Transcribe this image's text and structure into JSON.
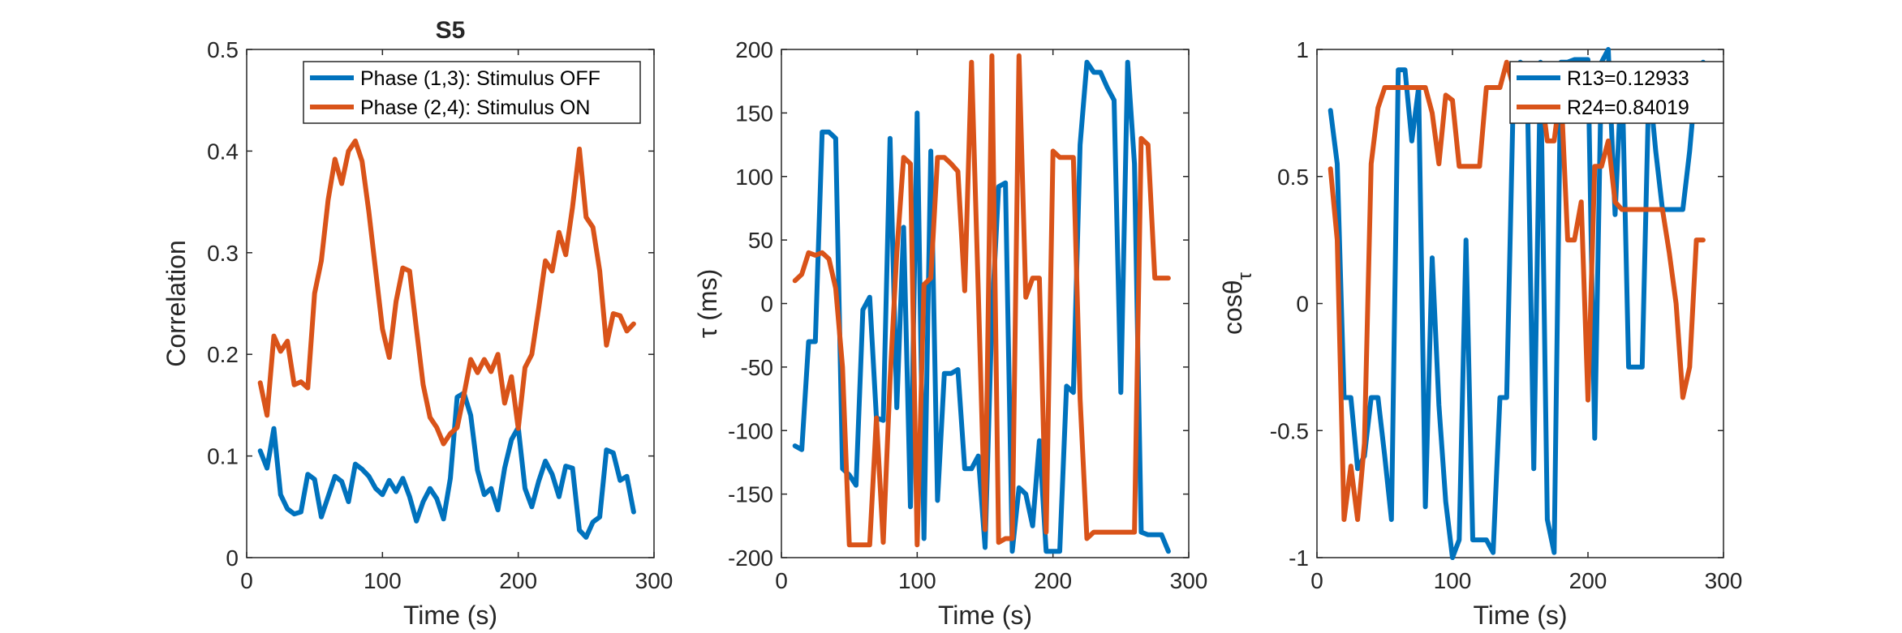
{
  "chart_data": [
    {
      "type": "line",
      "title": "S5",
      "xlabel": "Time (s)",
      "ylabel": "Correlation",
      "xlim": [
        0,
        300
      ],
      "ylim": [
        0,
        0.5
      ],
      "xticks": [
        0,
        100,
        200,
        300
      ],
      "xtick_labels": [
        "0",
        "100",
        "200",
        "300"
      ],
      "yticks": [
        0,
        0.1,
        0.2,
        0.3,
        0.4,
        0.5
      ],
      "ytick_labels": [
        "0",
        "0.1",
        "0.2",
        "0.3",
        "0.4",
        "0.5"
      ],
      "grid": false,
      "legend": "top-right",
      "series": [
        {
          "name": "Phase (1,3): Stimulus OFF",
          "color": "#0072BD",
          "x": [
            10,
            15,
            20,
            25,
            30,
            35,
            40,
            45,
            50,
            55,
            60,
            65,
            70,
            75,
            80,
            85,
            90,
            95,
            100,
            105,
            110,
            115,
            120,
            125,
            130,
            135,
            140,
            145,
            150,
            155,
            160,
            165,
            170,
            175,
            180,
            185,
            190,
            195,
            200,
            205,
            210,
            215,
            220,
            225,
            230,
            235,
            240,
            245,
            250,
            255,
            260,
            265,
            270,
            275,
            280,
            285
          ],
          "y": [
            0.105,
            0.088,
            0.127,
            0.062,
            0.048,
            0.043,
            0.045,
            0.082,
            0.077,
            0.04,
            0.06,
            0.08,
            0.075,
            0.055,
            0.092,
            0.087,
            0.08,
            0.068,
            0.062,
            0.076,
            0.065,
            0.078,
            0.06,
            0.036,
            0.055,
            0.068,
            0.058,
            0.038,
            0.078,
            0.158,
            0.162,
            0.14,
            0.086,
            0.062,
            0.068,
            0.047,
            0.088,
            0.116,
            0.128,
            0.068,
            0.05,
            0.075,
            0.095,
            0.082,
            0.06,
            0.09,
            0.088,
            0.027,
            0.02,
            0.035,
            0.04,
            0.106,
            0.103,
            0.076,
            0.08,
            0.045
          ]
        },
        {
          "name": "Phase (2,4): Stimulus ON",
          "color": "#D95319",
          "x": [
            10,
            15,
            20,
            25,
            30,
            35,
            40,
            45,
            50,
            55,
            60,
            65,
            70,
            75,
            80,
            85,
            90,
            95,
            100,
            105,
            110,
            115,
            120,
            125,
            130,
            135,
            140,
            145,
            150,
            155,
            160,
            165,
            170,
            175,
            180,
            185,
            190,
            195,
            200,
            205,
            210,
            215,
            220,
            225,
            230,
            235,
            240,
            245,
            250,
            255,
            260,
            265,
            270,
            275,
            280,
            285
          ],
          "y": [
            0.172,
            0.14,
            0.218,
            0.203,
            0.213,
            0.17,
            0.173,
            0.167,
            0.26,
            0.292,
            0.352,
            0.392,
            0.368,
            0.4,
            0.41,
            0.39,
            0.34,
            0.282,
            0.225,
            0.197,
            0.252,
            0.285,
            0.282,
            0.225,
            0.17,
            0.138,
            0.128,
            0.112,
            0.122,
            0.128,
            0.16,
            0.195,
            0.182,
            0.195,
            0.183,
            0.2,
            0.152,
            0.178,
            0.127,
            0.187,
            0.2,
            0.245,
            0.292,
            0.282,
            0.32,
            0.298,
            0.345,
            0.402,
            0.335,
            0.325,
            0.282,
            0.209,
            0.24,
            0.238,
            0.223,
            0.23
          ]
        }
      ]
    },
    {
      "type": "line",
      "title": "",
      "xlabel": "Time (s)",
      "ylabel": "τ (ms)",
      "xlim": [
        0,
        300
      ],
      "ylim": [
        -200,
        200
      ],
      "xticks": [
        0,
        100,
        200,
        300
      ],
      "xtick_labels": [
        "0",
        "100",
        "200",
        "300"
      ],
      "yticks": [
        -200,
        -150,
        -100,
        -50,
        0,
        50,
        100,
        150,
        200
      ],
      "ytick_labels": [
        "-200",
        "-150",
        "-100",
        "-50",
        "0",
        "50",
        "100",
        "150",
        "200"
      ],
      "grid": false,
      "legend": "none",
      "series": [
        {
          "color": "#0072BD",
          "x": [
            10,
            15,
            20,
            25,
            30,
            35,
            40,
            45,
            50,
            55,
            60,
            65,
            70,
            75,
            80,
            85,
            90,
            95,
            100,
            105,
            110,
            115,
            120,
            125,
            130,
            135,
            140,
            145,
            150,
            155,
            160,
            165,
            170,
            175,
            180,
            185,
            190,
            195,
            200,
            205,
            210,
            215,
            220,
            225,
            230,
            235,
            240,
            245,
            250,
            255,
            260,
            265,
            270,
            275,
            280,
            285
          ],
          "y": [
            -112,
            -115,
            -30,
            -30,
            135,
            135,
            130,
            -130,
            -135,
            -143,
            -5,
            5,
            -90,
            -92,
            130,
            -82,
            60,
            -160,
            150,
            -185,
            120,
            -155,
            -55,
            -55,
            -52,
            -130,
            -130,
            -120,
            -192,
            -10,
            92,
            95,
            -195,
            -145,
            -150,
            -175,
            -108,
            -195,
            -195,
            -195,
            -65,
            -70,
            125,
            190,
            182,
            182,
            170,
            160,
            -70,
            190,
            110,
            -180,
            -182,
            -182,
            -182,
            -195
          ]
        },
        {
          "color": "#D95319",
          "x": [
            10,
            15,
            20,
            25,
            30,
            35,
            40,
            45,
            50,
            55,
            60,
            65,
            70,
            75,
            80,
            85,
            90,
            95,
            100,
            105,
            110,
            115,
            120,
            125,
            130,
            135,
            140,
            145,
            150,
            155,
            160,
            165,
            170,
            175,
            180,
            185,
            190,
            195,
            200,
            205,
            210,
            215,
            220,
            225,
            230,
            235,
            240,
            245,
            250,
            255,
            260,
            265,
            270,
            275,
            280,
            285
          ],
          "y": [
            18,
            23,
            40,
            38,
            40,
            35,
            12,
            -50,
            -190,
            -190,
            -190,
            -190,
            -90,
            -188,
            -60,
            40,
            115,
            110,
            -190,
            15,
            20,
            115,
            115,
            110,
            104,
            10,
            190,
            10,
            -178,
            195,
            -188,
            -185,
            -185,
            195,
            5,
            20,
            20,
            -180,
            120,
            115,
            115,
            115,
            -75,
            -185,
            -180,
            -180,
            -180,
            -180,
            -180,
            -180,
            -180,
            130,
            125,
            20,
            20,
            20
          ]
        }
      ]
    },
    {
      "type": "line",
      "title": "",
      "xlabel": "Time (s)",
      "ylabel": "cosθ",
      "ylabel_subscript": "τ",
      "xlim": [
        0,
        300
      ],
      "ylim": [
        -1,
        1
      ],
      "xticks": [
        0,
        100,
        200,
        300
      ],
      "xtick_labels": [
        "0",
        "100",
        "200",
        "300"
      ],
      "yticks": [
        -1,
        -0.5,
        0,
        0.5,
        1
      ],
      "ytick_labels": [
        "-1",
        "-0.5",
        "0",
        "0.5",
        "1"
      ],
      "grid": false,
      "legend": "top-right",
      "series": [
        {
          "name": "R13=0.12933",
          "color": "#0072BD",
          "x": [
            10,
            15,
            20,
            25,
            30,
            35,
            40,
            45,
            50,
            55,
            60,
            65,
            70,
            75,
            80,
            85,
            90,
            95,
            100,
            105,
            110,
            115,
            120,
            125,
            130,
            135,
            140,
            145,
            150,
            155,
            160,
            165,
            170,
            175,
            180,
            185,
            190,
            195,
            200,
            205,
            210,
            215,
            220,
            225,
            230,
            235,
            240,
            245,
            250,
            255,
            260,
            265,
            270,
            275,
            280,
            285
          ],
          "y": [
            0.76,
            0.55,
            -0.37,
            -0.37,
            -0.65,
            -0.6,
            -0.37,
            -0.37,
            -0.6,
            -0.85,
            0.92,
            0.92,
            0.64,
            0.85,
            -0.8,
            0.18,
            -0.4,
            -0.78,
            -1.0,
            -0.93,
            0.25,
            -0.93,
            -0.93,
            -0.93,
            -0.98,
            -0.37,
            -0.37,
            0.85,
            0.95,
            0.93,
            -0.65,
            0.95,
            -0.85,
            -0.98,
            0.95,
            0.95,
            0.96,
            0.96,
            0.96,
            -0.53,
            0.95,
            1.0,
            0.35,
            0.93,
            -0.25,
            -0.25,
            -0.25,
            0.88,
            0.6,
            0.37,
            0.37,
            0.37,
            0.37,
            0.6,
            0.9,
            0.95
          ]
        },
        {
          "name": "R24=0.84019",
          "color": "#D95319",
          "x": [
            10,
            15,
            20,
            25,
            30,
            35,
            40,
            45,
            50,
            55,
            60,
            65,
            70,
            75,
            80,
            85,
            90,
            95,
            100,
            105,
            110,
            115,
            120,
            125,
            130,
            135,
            140,
            145,
            150,
            155,
            160,
            165,
            170,
            175,
            180,
            185,
            190,
            195,
            200,
            205,
            210,
            215,
            220,
            225,
            230,
            235,
            240,
            245,
            250,
            255,
            260,
            265,
            270,
            275,
            280,
            285
          ],
          "y": [
            0.53,
            0.25,
            -0.85,
            -0.64,
            -0.85,
            -0.55,
            0.55,
            0.77,
            0.85,
            0.85,
            0.85,
            0.85,
            0.85,
            0.85,
            0.85,
            0.75,
            0.55,
            0.82,
            0.8,
            0.54,
            0.54,
            0.54,
            0.54,
            0.85,
            0.85,
            0.85,
            0.95,
            0.85,
            0.93,
            0.85,
            0.85,
            0.85,
            0.64,
            0.64,
            0.85,
            0.25,
            0.25,
            0.4,
            -0.38,
            0.54,
            0.54,
            0.64,
            0.4,
            0.37,
            0.37,
            0.37,
            0.37,
            0.37,
            0.37,
            0.37,
            0.2,
            0.0,
            -0.37,
            -0.25,
            0.25,
            0.25
          ]
        }
      ]
    }
  ]
}
